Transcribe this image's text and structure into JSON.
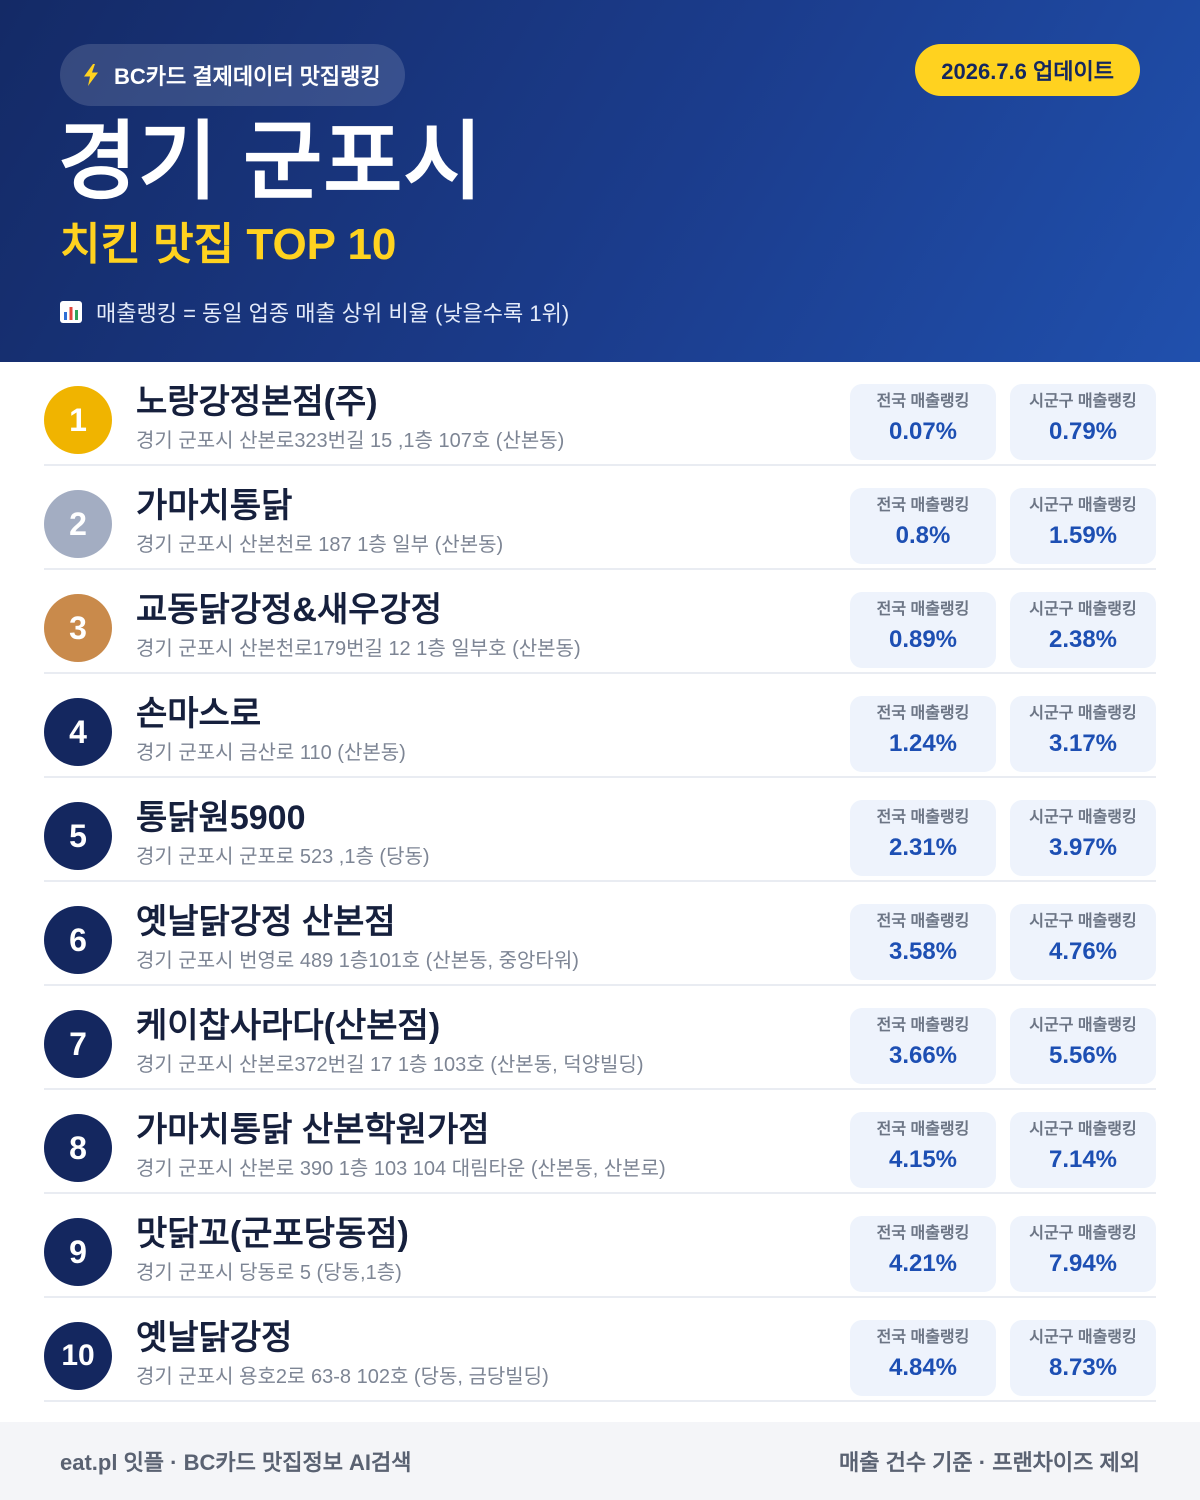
{
  "header": {
    "source_label": "BC카드 결제데이터 맛집랭킹",
    "update_label": "2026.7.6 업데이트",
    "region": "경기 군포시",
    "category_title": "치킨 맛집 TOP 10",
    "legend": "매출랭킹 = 동일 업종 매출 상위 비율 (낮을수록 1위)"
  },
  "stat_labels": {
    "national": "전국 매출랭킹",
    "local": "시군구 매출랭킹"
  },
  "colors": {
    "gold": "#f0b400",
    "silver": "#a3adc2",
    "bronze": "#c98a4b",
    "navy": "#14275f",
    "accent_yellow": "#ffd21f",
    "value_blue": "#1d4fb3"
  },
  "icons": {
    "source": "lightning-bolt-icon",
    "legend": "bar-chart-icon"
  },
  "restaurants": [
    {
      "rank": "1",
      "name": "노랑강정본점(주)",
      "address": "경기 군포시 산본로323번길 15 ,1층 107호 (산본동)",
      "national": "0.07%",
      "local": "0.79%",
      "badge": "gold"
    },
    {
      "rank": "2",
      "name": "가마치통닭",
      "address": "경기 군포시 산본천로 187 1층 일부 (산본동)",
      "national": "0.8%",
      "local": "1.59%",
      "badge": "silver"
    },
    {
      "rank": "3",
      "name": "교동닭강정&새우강정",
      "address": "경기 군포시 산본천로179번길 12 1층 일부호 (산본동)",
      "national": "0.89%",
      "local": "2.38%",
      "badge": "bronze"
    },
    {
      "rank": "4",
      "name": "손마스로",
      "address": "경기 군포시 금산로 110 (산본동)",
      "national": "1.24%",
      "local": "3.17%",
      "badge": "navy"
    },
    {
      "rank": "5",
      "name": "통닭원5900",
      "address": "경기 군포시 군포로 523 ,1층 (당동)",
      "national": "2.31%",
      "local": "3.97%",
      "badge": "navy"
    },
    {
      "rank": "6",
      "name": "옛날닭강정 산본점",
      "address": "경기 군포시 번영로 489 1층101호 (산본동, 중앙타워)",
      "national": "3.58%",
      "local": "4.76%",
      "badge": "navy"
    },
    {
      "rank": "7",
      "name": "케이찹사라다(산본점)",
      "address": "경기 군포시 산본로372번길 17 1층 103호 (산본동, 덕양빌딩)",
      "national": "3.66%",
      "local": "5.56%",
      "badge": "navy"
    },
    {
      "rank": "8",
      "name": "가마치통닭 산본학원가점",
      "address": "경기 군포시 산본로 390 1층 103 104 대림타운 (산본동, 산본로)",
      "national": "4.15%",
      "local": "7.14%",
      "badge": "navy"
    },
    {
      "rank": "9",
      "name": "맛닭꼬(군포당동점)",
      "address": "경기 군포시 당동로 5 (당동,1층)",
      "national": "4.21%",
      "local": "7.94%",
      "badge": "navy"
    },
    {
      "rank": "10",
      "name": "옛날닭강정",
      "address": "경기 군포시 용호2로 63-8 102호 (당동, 금당빌딩)",
      "national": "4.84%",
      "local": "8.73%",
      "badge": "navy"
    }
  ],
  "footer": {
    "left": "eat.pl 잇플 · BC카드 맛집정보 AI검색",
    "right": "매출 건수 기준 · 프랜차이즈 제외"
  }
}
